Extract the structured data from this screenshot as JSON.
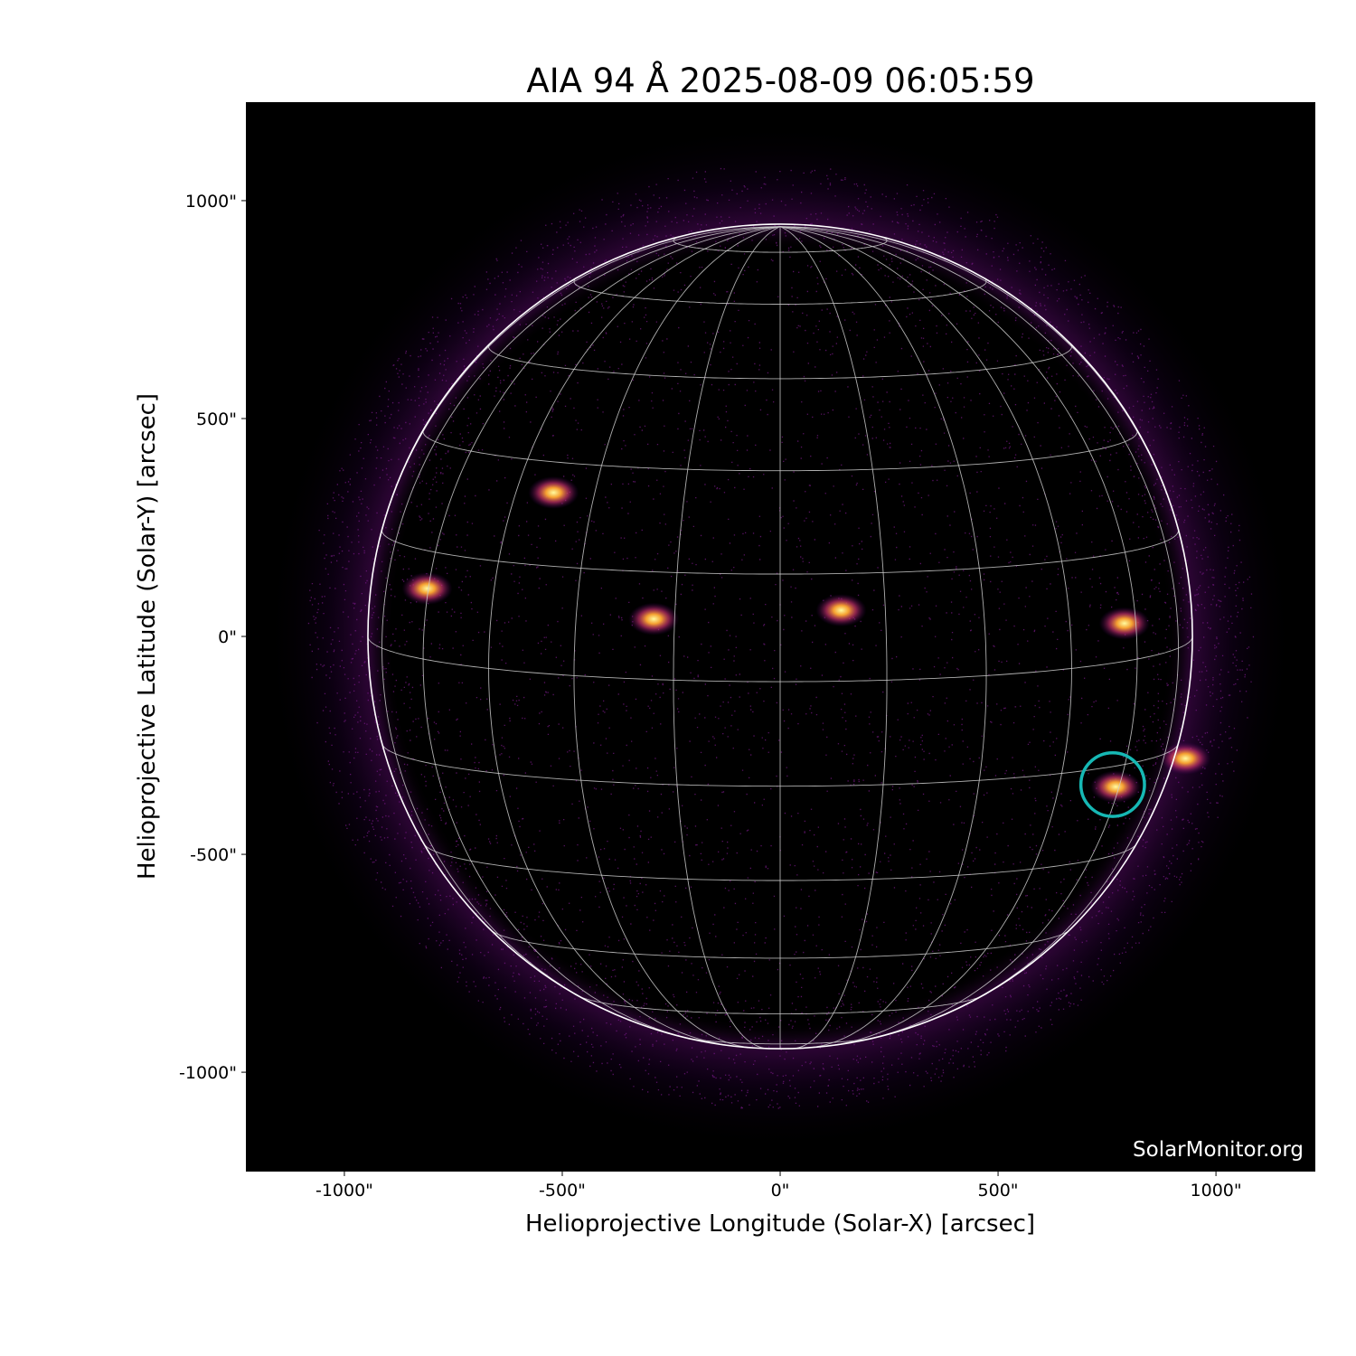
{
  "chart_data": {
    "type": "image",
    "title": "AIA 94 Å 2025-08-09 06:05:59",
    "xlabel": "Helioprojective Longitude (Solar-X) [arcsec]",
    "ylabel": "Helioprojective Latitude (Solar-Y) [arcsec]",
    "xlim": [
      -1226,
      1228
    ],
    "ylim": [
      -1228,
      1226
    ],
    "xticks": [
      -1000,
      -500,
      0,
      500,
      1000
    ],
    "xtick_labels": [
      "-1000\"",
      "-500\"",
      "0\"",
      "500\"",
      "1000\""
    ],
    "yticks": [
      -1000,
      -500,
      0,
      500,
      1000
    ],
    "ytick_labels": [
      "-1000\"",
      "-500\"",
      "0\"",
      "500\"",
      "1000\""
    ],
    "solar_radius_arcsec": 946,
    "b0_deg": 6.3,
    "grid_spacing_deg": 15,
    "colormap": "inferno-like (sdoaia94)",
    "highlight_circle": {
      "x": 763,
      "y": -340,
      "r": 73,
      "color": "#16b8b4"
    },
    "active_regions": [
      {
        "x": 790,
        "y": 30
      },
      {
        "x": 770,
        "y": -345
      },
      {
        "x": 140,
        "y": 60
      },
      {
        "x": -290,
        "y": 40
      },
      {
        "x": -810,
        "y": 110
      },
      {
        "x": -520,
        "y": 330
      },
      {
        "x": 930,
        "y": -280
      }
    ],
    "watermark": "SolarMonitor.org",
    "grid": true
  }
}
